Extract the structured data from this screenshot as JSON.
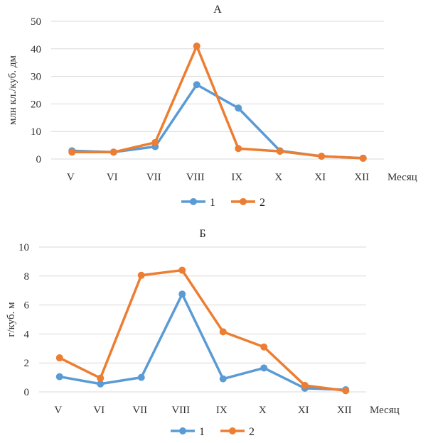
{
  "chart_data": [
    {
      "type": "line",
      "title": "А",
      "ylabel": "млн кл./куб. дм",
      "xlabel": "Месяц",
      "categories": [
        "V",
        "VI",
        "VII",
        "VIII",
        "IX",
        "X",
        "XI",
        "XII"
      ],
      "ylim": [
        0,
        50
      ],
      "yticks": [
        "0",
        "10",
        "20",
        "30",
        "40",
        "50"
      ],
      "grid": true,
      "legend": "bottom",
      "series": [
        {
          "name": "1",
          "color": "#5b9bd5",
          "values": [
            3.0,
            2.5,
            4.5,
            27.0,
            18.5,
            3.0,
            1.0,
            0.3
          ]
        },
        {
          "name": "2",
          "color": "#ed7d31",
          "values": [
            2.5,
            2.5,
            6.0,
            41.0,
            3.8,
            2.8,
            1.0,
            0.3
          ]
        }
      ]
    },
    {
      "type": "line",
      "title": "Б",
      "ylabel": "г/куб. м",
      "xlabel": "Месяц",
      "categories": [
        "V",
        "VI",
        "VII",
        "VIII",
        "IX",
        "X",
        "XI",
        "XII"
      ],
      "ylim": [
        0,
        10
      ],
      "yticks": [
        "0",
        "2",
        "4",
        "6",
        "8",
        "10"
      ],
      "grid": true,
      "legend": "bottom",
      "series": [
        {
          "name": "1",
          "color": "#5b9bd5",
          "values": [
            1.05,
            0.55,
            1.0,
            6.75,
            0.9,
            1.65,
            0.25,
            0.15
          ]
        },
        {
          "name": "2",
          "color": "#ed7d31",
          "values": [
            2.35,
            0.95,
            8.05,
            8.4,
            4.15,
            3.1,
            0.45,
            0.08
          ]
        }
      ]
    }
  ]
}
